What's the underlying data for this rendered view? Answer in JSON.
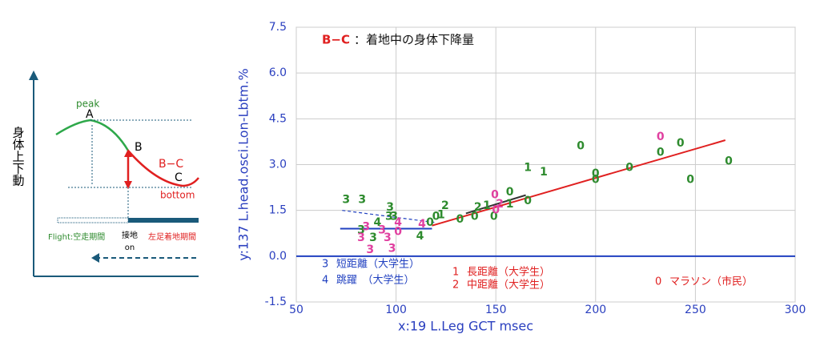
{
  "diagram": {
    "y_label": "身体上下動",
    "peak": "peak",
    "a": "A",
    "b": "B",
    "bc": "B−C",
    "c": "C",
    "bottom": "bottom",
    "flight": "Flight:空走期間",
    "contact": "接地",
    "on": "on",
    "stance": "左足着地期間"
  },
  "chart_data": {
    "type": "scatter",
    "annotation": {
      "label": "B−C",
      "text": "：着地中の身体下降量",
      "label_color": "#e02020"
    },
    "xlabel": "x:19 L.Leg GCT msec",
    "ylabel": "y:137 L.head.osci.Lon-Lbtm.%",
    "xlim": [
      50,
      300
    ],
    "ylim": [
      -1.5,
      7.5
    ],
    "xticks": [
      50,
      100,
      150,
      200,
      250,
      300
    ],
    "yticks": [
      -1.5,
      {
        "value": 0,
        "label": "0.0"
      },
      1.5,
      {
        "value": 3,
        "label": "3.0"
      },
      4.5,
      {
        "value": 6,
        "label": "6.0"
      },
      7.5
    ],
    "grid": true,
    "series": [
      {
        "name": "短距離（大学生）",
        "marker": "3",
        "legend_color": "#2040c0",
        "x": [
          75,
          83,
          97,
          96.5,
          99,
          82.5,
          88.5,
          85,
          82.5,
          87,
          95.7,
          98,
          93
        ],
        "values": [
          1.85,
          1.85,
          1.6,
          1.3,
          1.3,
          0.85,
          0.6,
          0.95,
          0.6,
          0.2,
          0.6,
          0.25,
          0.85
        ],
        "colors": [
          "#2e8b2e",
          "#2e8b2e",
          "#2e8b2e",
          "#2e8b2e",
          "#2e8b2e",
          "#2e8b2e",
          "#2e8b2e",
          "#e040a0",
          "#e040a0",
          "#e040a0",
          "#e040a0",
          "#e040a0",
          "#e040a0"
        ]
      },
      {
        "name": "跳躍　（大学生）",
        "marker": "4",
        "legend_color": "#2040c0",
        "x": [
          90.7,
          112,
          101,
          113
        ],
        "values": [
          1.1,
          0.65,
          1.1,
          1.05
        ],
        "colors": [
          "#2e8b2e",
          "#2e8b2e",
          "#e040a0",
          "#e040a0"
        ]
      },
      {
        "name": "長距離（大学生）",
        "marker": "1",
        "legend_color": "#e02020",
        "x": [
          166,
          174,
          145.5,
          157,
          122.6
        ],
        "values": [
          2.9,
          2.75,
          1.65,
          1.7,
          1.35
        ],
        "colors": [
          "#2e8b2e",
          "#2e8b2e",
          "#2e8b2e",
          "#2e8b2e",
          "#2e8b2e"
        ]
      },
      {
        "name": "中距離（大学生）",
        "marker": "2",
        "legend_color": "#e02020",
        "x": [
          124.6,
          141,
          152
        ],
        "values": [
          1.65,
          1.6,
          1.7
        ],
        "colors": [
          "#2e8b2e",
          "#2e8b2e",
          "#e040a0"
        ]
      },
      {
        "name": "マラソン（市民）",
        "marker": "0",
        "legend_color": "#e02020",
        "x": [
          192.5,
          200,
          200,
          217,
          232.5,
          242.5,
          247.5,
          266.7,
          166,
          157,
          149,
          139.4,
          132,
          120,
          117,
          232.5,
          149.5,
          150,
          101
        ],
        "values": [
          3.6,
          2.7,
          2.5,
          2.9,
          3.4,
          3.7,
          2.5,
          3.1,
          1.8,
          2.1,
          1.3,
          1.3,
          1.2,
          1.3,
          1.1,
          3.9,
          2.0,
          1.5,
          0.8
        ],
        "colors": [
          "#2e8b2e",
          "#2e8b2e",
          "#2e8b2e",
          "#2e8b2e",
          "#2e8b2e",
          "#2e8b2e",
          "#2e8b2e",
          "#2e8b2e",
          "#2e8b2e",
          "#2e8b2e",
          "#2e8b2e",
          "#2e8b2e",
          "#2e8b2e",
          "#2e8b2e",
          "#2e8b2e",
          "#e040a0",
          "#e040a0",
          "#e040a0",
          "#e040a0"
        ]
      }
    ],
    "trend_lines": [
      {
        "color": "#e02020",
        "dashed": false,
        "x": [
          118,
          265
        ],
        "y": [
          1.0,
          3.8
        ]
      },
      {
        "color": "#2040c0",
        "dashed": false,
        "x": [
          72,
          118
        ],
        "y": [
          0.9,
          0.9
        ]
      },
      {
        "color": "#2040c0",
        "dashed": true,
        "x": [
          73,
          120
        ],
        "y": [
          1.5,
          1.1
        ]
      },
      {
        "color": "#333333",
        "dashed": false,
        "x": [
          135,
          165
        ],
        "y": [
          1.4,
          2.0
        ]
      },
      {
        "color": "#2040c0",
        "dashed": false,
        "x": [
          50,
          300
        ],
        "y": [
          0,
          0
        ]
      }
    ]
  }
}
